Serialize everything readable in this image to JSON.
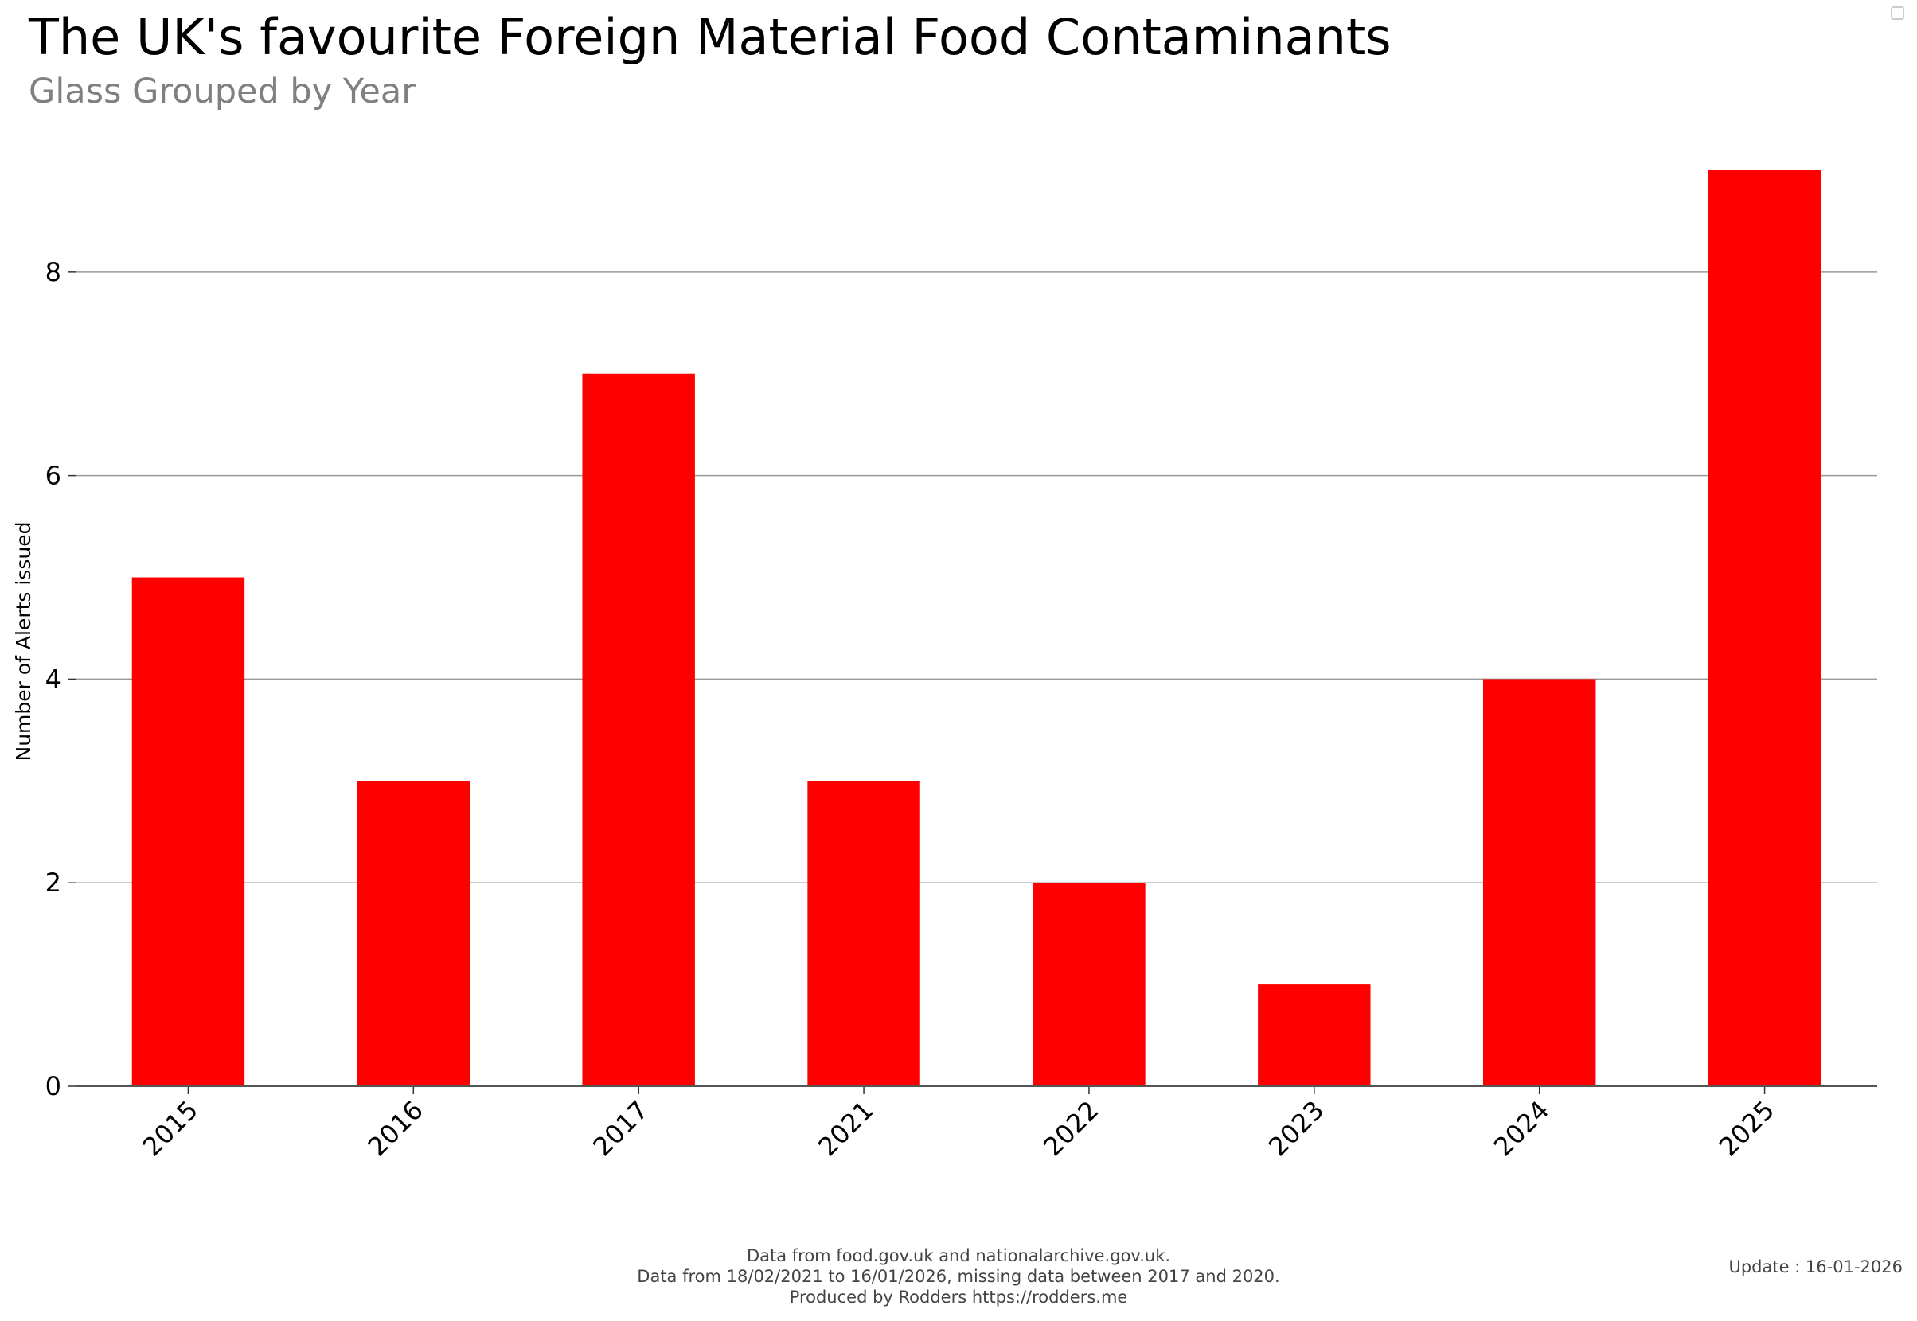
{
  "chart_data": {
    "type": "bar",
    "title": "The UK's favourite Foreign Material Food Contaminants",
    "subtitle": "Glass Grouped by Year",
    "xlabel": "",
    "ylabel": "Number of Alerts issued",
    "categories": [
      "2015",
      "2016",
      "2017",
      "2021",
      "2022",
      "2023",
      "2024",
      "2025"
    ],
    "values": [
      5,
      3,
      7,
      3,
      2,
      1,
      4,
      9
    ],
    "yticks": [
      "0",
      "2",
      "4",
      "6",
      "8"
    ],
    "ylim": [
      0,
      9.5
    ],
    "grid": true,
    "legend": "top-right",
    "bar_color": "#ff0000",
    "grid_color": "#999999"
  },
  "footer": {
    "line1": "Data from food.gov.uk and nationalarchive.gov.uk.",
    "line2": "Data from 18/02/2021 to 16/01/2026, missing data between 2017 and 2020.",
    "line3": "Produced by Rodders https://rodders.me",
    "update": "Update : 16-01-2026"
  }
}
